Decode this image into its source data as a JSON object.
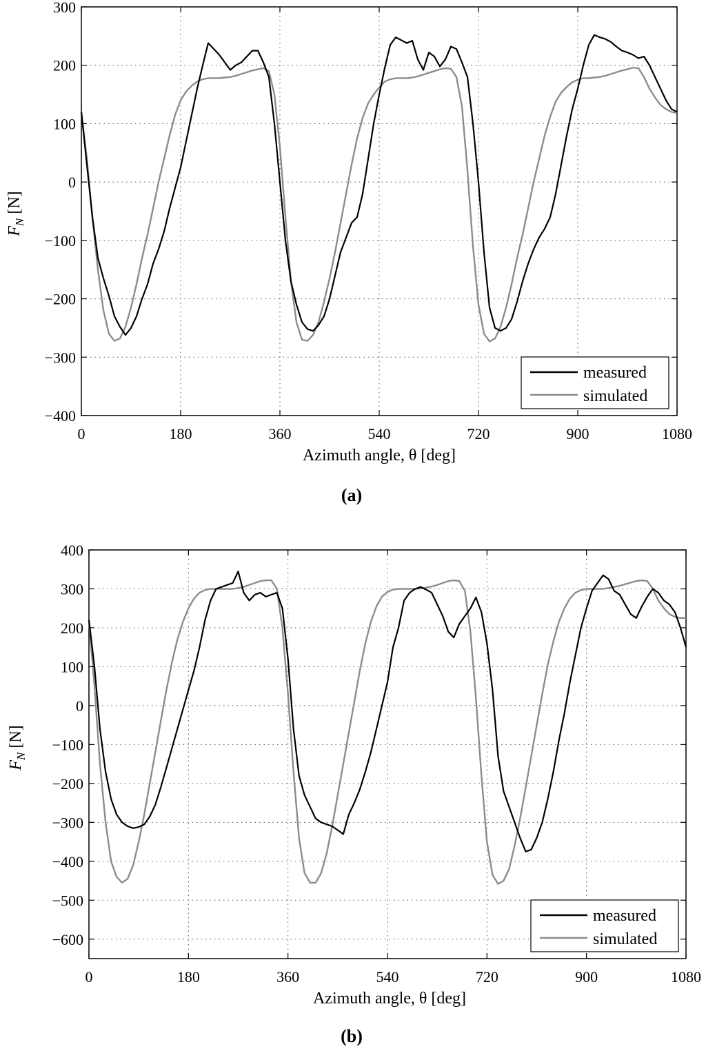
{
  "chart_data": [
    {
      "type": "line",
      "panel_label": "(a)",
      "xlabel": "Azimuth angle, θ [deg]",
      "ylabel_main": "F",
      "ylabel_sub": "N",
      "ylabel_unit": " [N]",
      "xlim": [
        0,
        1080
      ],
      "ylim": [
        -400,
        300
      ],
      "xticks": [
        0,
        180,
        360,
        540,
        720,
        900,
        1080
      ],
      "yticks": [
        -400,
        -300,
        -200,
        -100,
        0,
        100,
        200,
        300
      ],
      "grid": true,
      "legend_position": "bottom-right",
      "series": [
        {
          "name": "measured",
          "color": "#000000",
          "x": [
            0,
            10,
            20,
            30,
            40,
            50,
            60,
            70,
            80,
            90,
            100,
            110,
            120,
            130,
            140,
            150,
            160,
            170,
            180,
            190,
            200,
            210,
            220,
            230,
            240,
            250,
            260,
            270,
            280,
            290,
            300,
            310,
            320,
            330,
            340,
            350,
            360,
            370,
            380,
            390,
            400,
            410,
            420,
            430,
            440,
            450,
            460,
            470,
            480,
            490,
            500,
            510,
            520,
            530,
            540,
            550,
            560,
            570,
            580,
            590,
            600,
            610,
            620,
            630,
            640,
            650,
            660,
            670,
            680,
            690,
            700,
            710,
            720,
            730,
            740,
            750,
            760,
            770,
            780,
            790,
            800,
            810,
            820,
            830,
            840,
            850,
            860,
            870,
            880,
            890,
            900,
            910,
            920,
            930,
            940,
            950,
            960,
            970,
            980,
            990,
            1000,
            1010,
            1020,
            1030,
            1040,
            1050,
            1060,
            1070,
            1080
          ],
          "values": [
            120,
            30,
            -60,
            -130,
            -165,
            -195,
            -230,
            -248,
            -262,
            -250,
            -230,
            -200,
            -175,
            -140,
            -115,
            -85,
            -45,
            -10,
            25,
            70,
            115,
            160,
            200,
            238,
            228,
            218,
            205,
            192,
            200,
            205,
            215,
            225,
            225,
            205,
            180,
            100,
            0,
            -100,
            -170,
            -210,
            -240,
            -252,
            -255,
            -245,
            -230,
            -200,
            -160,
            -120,
            -95,
            -70,
            -60,
            -20,
            40,
            100,
            150,
            195,
            235,
            248,
            243,
            238,
            242,
            210,
            192,
            222,
            215,
            198,
            210,
            232,
            228,
            205,
            180,
            100,
            0,
            -120,
            -215,
            -250,
            -255,
            -250,
            -235,
            -205,
            -170,
            -140,
            -115,
            -95,
            -80,
            -60,
            -20,
            30,
            80,
            125,
            160,
            200,
            235,
            252,
            248,
            245,
            240,
            232,
            225,
            222,
            218,
            212,
            215,
            200,
            180,
            160,
            140,
            125,
            120
          ],
          "note": ""
        },
        {
          "name": "simulated",
          "color": "#8c8c8c",
          "x": [
            0,
            10,
            20,
            30,
            40,
            50,
            60,
            70,
            80,
            90,
            100,
            110,
            120,
            130,
            140,
            150,
            160,
            170,
            180,
            190,
            200,
            210,
            220,
            230,
            240,
            250,
            260,
            270,
            280,
            290,
            300,
            310,
            320,
            330,
            340,
            350,
            360,
            370,
            380,
            390,
            400,
            410,
            420,
            430,
            440,
            450,
            460,
            470,
            480,
            490,
            500,
            510,
            520,
            530,
            540,
            550,
            560,
            570,
            580,
            590,
            600,
            610,
            620,
            630,
            640,
            650,
            660,
            670,
            680,
            690,
            700,
            710,
            720,
            730,
            740,
            750,
            760,
            770,
            780,
            790,
            800,
            810,
            820,
            830,
            840,
            850,
            860,
            870,
            880,
            890,
            900,
            910,
            920,
            930,
            940,
            950,
            960,
            970,
            980,
            990,
            1000,
            1010,
            1020,
            1030,
            1040,
            1050,
            1060,
            1070,
            1080
          ],
          "values": [
            120,
            40,
            -60,
            -150,
            -220,
            -260,
            -272,
            -268,
            -248,
            -215,
            -175,
            -130,
            -90,
            -45,
            0,
            40,
            80,
            115,
            140,
            155,
            165,
            172,
            176,
            178,
            178,
            178,
            179,
            180,
            182,
            185,
            188,
            191,
            193,
            195,
            190,
            150,
            60,
            -60,
            -170,
            -240,
            -270,
            -272,
            -262,
            -240,
            -205,
            -165,
            -120,
            -70,
            -20,
            30,
            75,
            110,
            135,
            150,
            162,
            172,
            176,
            178,
            178,
            178,
            179,
            181,
            184,
            187,
            190,
            193,
            195,
            194,
            180,
            130,
            20,
            -110,
            -210,
            -260,
            -273,
            -268,
            -248,
            -215,
            -175,
            -130,
            -90,
            -45,
            0,
            40,
            80,
            112,
            138,
            153,
            163,
            171,
            175,
            178,
            178,
            179,
            180,
            182,
            185,
            188,
            191,
            193,
            196,
            195,
            180,
            160,
            145,
            132,
            125,
            120,
            118
          ],
          "note": ""
        }
      ]
    },
    {
      "type": "line",
      "panel_label": "(b)",
      "xlabel": "Azimuth angle, θ [deg]",
      "ylabel_main": "F",
      "ylabel_sub": "N",
      "ylabel_unit": " [N]",
      "xlim": [
        0,
        1080
      ],
      "ylim": [
        -650,
        400
      ],
      "xticks": [
        0,
        180,
        360,
        540,
        720,
        900,
        1080
      ],
      "yticks": [
        -600,
        -500,
        -400,
        -300,
        -200,
        -100,
        0,
        100,
        200,
        300,
        400
      ],
      "grid": true,
      "legend_position": "bottom-right",
      "series": [
        {
          "name": "measured",
          "color": "#000000",
          "x": [
            0,
            10,
            20,
            30,
            40,
            50,
            60,
            70,
            80,
            90,
            100,
            110,
            120,
            130,
            140,
            150,
            160,
            170,
            180,
            190,
            200,
            210,
            220,
            230,
            240,
            250,
            260,
            270,
            280,
            290,
            300,
            310,
            320,
            330,
            340,
            350,
            360,
            370,
            380,
            390,
            400,
            410,
            420,
            430,
            440,
            450,
            460,
            470,
            480,
            490,
            500,
            510,
            520,
            530,
            540,
            550,
            560,
            570,
            580,
            590,
            600,
            610,
            620,
            630,
            640,
            650,
            660,
            670,
            680,
            690,
            700,
            710,
            720,
            730,
            740,
            750,
            760,
            770,
            780,
            790,
            800,
            810,
            820,
            830,
            840,
            850,
            860,
            870,
            880,
            890,
            900,
            910,
            920,
            930,
            940,
            950,
            960,
            970,
            980,
            990,
            1000,
            1010,
            1020,
            1030,
            1040,
            1050,
            1060,
            1070,
            1080
          ],
          "values": [
            220,
            100,
            -60,
            -170,
            -240,
            -280,
            -300,
            -310,
            -315,
            -312,
            -305,
            -285,
            -255,
            -210,
            -160,
            -110,
            -60,
            -10,
            40,
            90,
            150,
            220,
            270,
            300,
            305,
            310,
            315,
            345,
            290,
            270,
            285,
            290,
            280,
            285,
            290,
            250,
            120,
            -60,
            -180,
            -230,
            -260,
            -290,
            -300,
            -305,
            -310,
            -320,
            -330,
            -280,
            -250,
            -215,
            -170,
            -120,
            -60,
            0,
            60,
            150,
            200,
            270,
            290,
            300,
            305,
            298,
            290,
            260,
            230,
            190,
            175,
            210,
            230,
            250,
            278,
            240,
            160,
            40,
            -130,
            -220,
            -260,
            -300,
            -340,
            -375,
            -370,
            -340,
            -300,
            -240,
            -170,
            -90,
            -20,
            60,
            130,
            200,
            250,
            295,
            315,
            335,
            325,
            295,
            285,
            260,
            235,
            225,
            255,
            280,
            300,
            290,
            270,
            260,
            240,
            200,
            150
          ],
          "note": ""
        },
        {
          "name": "simulated",
          "color": "#8c8c8c",
          "x": [
            0,
            10,
            20,
            30,
            40,
            50,
            60,
            70,
            80,
            90,
            100,
            110,
            120,
            130,
            140,
            150,
            160,
            170,
            180,
            190,
            200,
            210,
            220,
            230,
            240,
            250,
            260,
            270,
            280,
            290,
            300,
            310,
            320,
            330,
            340,
            350,
            360,
            370,
            380,
            390,
            400,
            410,
            420,
            430,
            440,
            450,
            460,
            470,
            480,
            490,
            500,
            510,
            520,
            530,
            540,
            550,
            560,
            570,
            580,
            590,
            600,
            610,
            620,
            630,
            640,
            650,
            660,
            670,
            680,
            690,
            700,
            710,
            720,
            730,
            740,
            750,
            760,
            770,
            780,
            790,
            800,
            810,
            820,
            830,
            840,
            850,
            860,
            870,
            880,
            890,
            900,
            910,
            920,
            930,
            940,
            950,
            960,
            970,
            980,
            990,
            1000,
            1010,
            1020,
            1030,
            1040,
            1050,
            1060,
            1070,
            1080
          ],
          "values": [
            220,
            50,
            -150,
            -300,
            -400,
            -440,
            -455,
            -445,
            -410,
            -350,
            -280,
            -200,
            -120,
            -40,
            40,
            110,
            170,
            215,
            250,
            275,
            290,
            297,
            300,
            300,
            300,
            300,
            300,
            302,
            305,
            310,
            315,
            320,
            322,
            322,
            300,
            200,
            30,
            -170,
            -340,
            -430,
            -455,
            -455,
            -430,
            -380,
            -310,
            -230,
            -150,
            -70,
            10,
            90,
            160,
            215,
            255,
            280,
            292,
            298,
            300,
            300,
            300,
            300,
            301,
            303,
            306,
            310,
            315,
            320,
            322,
            320,
            295,
            190,
            20,
            -180,
            -350,
            -435,
            -458,
            -450,
            -420,
            -360,
            -290,
            -210,
            -130,
            -50,
            30,
            105,
            165,
            215,
            250,
            275,
            290,
            297,
            300,
            300,
            300,
            300,
            302,
            305,
            308,
            312,
            316,
            320,
            322,
            320,
            300,
            270,
            250,
            235,
            228,
            225,
            225
          ],
          "note": ""
        }
      ]
    }
  ]
}
